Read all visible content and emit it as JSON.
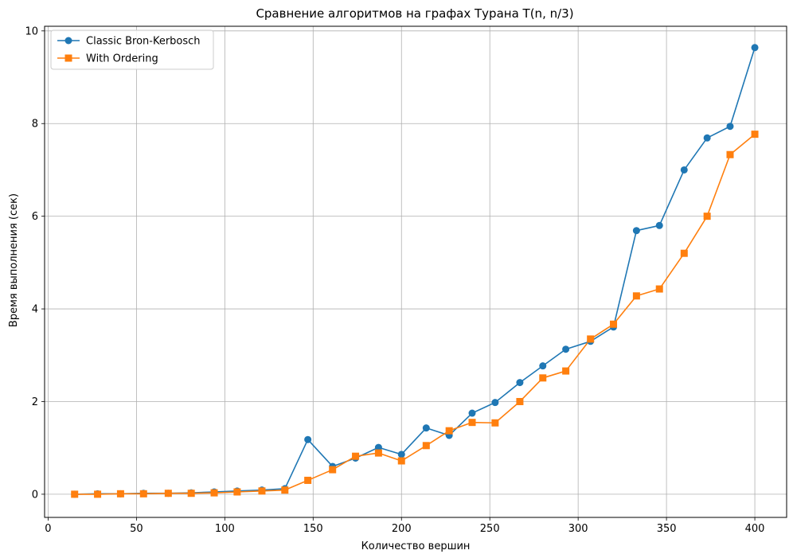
{
  "chart_data": {
    "type": "line",
    "title": "Сравнение алгоритмов на графах Турана T(n, n/3)",
    "xlabel": "Количество вершин",
    "ylabel": "Время выполнения (сек)",
    "xlim": [
      -2,
      418
    ],
    "ylim": [
      -0.5,
      10.1
    ],
    "xticks": [
      0,
      50,
      100,
      150,
      200,
      250,
      300,
      350,
      400
    ],
    "yticks": [
      0,
      2,
      4,
      6,
      8,
      10
    ],
    "grid": true,
    "legend_position": "top-left",
    "x": [
      15,
      28,
      41,
      54,
      68,
      81,
      94,
      107,
      121,
      134,
      147,
      161,
      174,
      187,
      200,
      214,
      227,
      240,
      253,
      267,
      280,
      293,
      307,
      320,
      333,
      346,
      360,
      373,
      386,
      400
    ],
    "series": [
      {
        "name": "Classic Bron-Kerbosch",
        "color": "#1f77b4",
        "marker": "circle",
        "values": [
          0.0,
          0.01,
          0.01,
          0.02,
          0.02,
          0.03,
          0.05,
          0.07,
          0.09,
          0.12,
          1.18,
          0.6,
          0.78,
          1.01,
          0.86,
          1.43,
          1.27,
          1.75,
          1.98,
          2.41,
          2.77,
          3.13,
          3.3,
          3.61,
          5.69,
          5.8,
          7.0,
          7.69,
          7.94,
          9.64
        ]
      },
      {
        "name": "With Ordering",
        "color": "#ff7f0e",
        "marker": "square",
        "values": [
          0.0,
          0.0,
          0.01,
          0.01,
          0.02,
          0.02,
          0.03,
          0.05,
          0.07,
          0.09,
          0.3,
          0.53,
          0.82,
          0.89,
          0.72,
          1.05,
          1.37,
          1.55,
          1.54,
          2.0,
          2.51,
          2.66,
          3.35,
          3.67,
          4.28,
          4.43,
          5.2,
          6.0,
          7.33,
          7.77
        ]
      }
    ]
  }
}
